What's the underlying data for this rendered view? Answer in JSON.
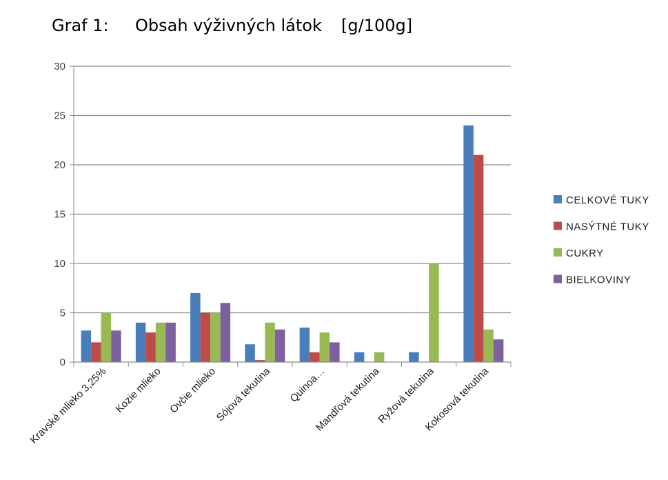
{
  "chart_data": {
    "type": "bar",
    "title_prefix": "Graf 1:",
    "title": "Obsah výživných látok",
    "title_unit": "[g/100g]",
    "categories": [
      "Kravské mlieko 3,25%",
      "Kozie mlieko",
      "Ovčie mlieko",
      "Sójová tekutina",
      "Quinoa…",
      "Mandľová tekutina",
      "Ryžová tekutina",
      "Kokosová tekutina"
    ],
    "series": [
      {
        "name": "CELKOVÉ TUKY",
        "color": "#4a7ebb",
        "values": [
          3.2,
          4,
          7,
          1.8,
          3.5,
          1,
          1,
          24
        ]
      },
      {
        "name": "NASÝTNÉ TUKY",
        "color": "#be4b48",
        "values": [
          2,
          3,
          5,
          0.2,
          1,
          0,
          0,
          21
        ]
      },
      {
        "name": "CUKRY",
        "color": "#98b954",
        "values": [
          5,
          4,
          5,
          4,
          3,
          1,
          10,
          3.3
        ]
      },
      {
        "name": "BIELKOVINY",
        "color": "#7d60a0",
        "values": [
          3.2,
          4,
          6,
          3.3,
          2,
          0,
          0,
          2.3
        ]
      }
    ],
    "ylim": [
      0,
      30
    ],
    "yticks": [
      0,
      5,
      10,
      15,
      20,
      25,
      30
    ],
    "grid": true,
    "legend_position": "right"
  }
}
